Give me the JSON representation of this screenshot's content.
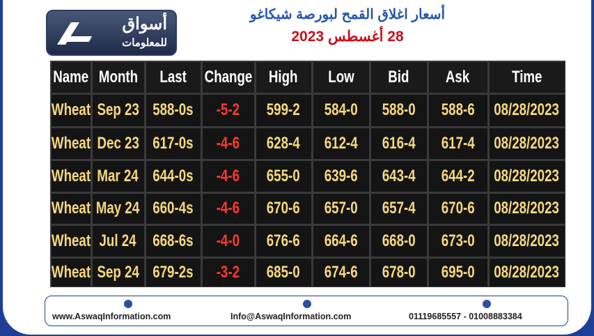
{
  "header": {
    "logo_name": "أسواق",
    "logo_sub": "للمعلومات",
    "title": "أسعار اغلاق القمح لبورصة شيكاغو",
    "date": "28 أغسطس 2023"
  },
  "table": {
    "columns": [
      "Name",
      "Month",
      "Last",
      "Change",
      "High",
      "Low",
      "Bid",
      "Ask",
      "Time"
    ],
    "rows": [
      [
        "Wheat",
        "Sep 23",
        "588-0s",
        "-5-2",
        "599-2",
        "584-0",
        "588-0",
        "588-6",
        "08/28/2023"
      ],
      [
        "Wheat",
        "Dec 23",
        "617-0s",
        "-4-6",
        "628-4",
        "612-4",
        "616-4",
        "617-4",
        "08/28/2023"
      ],
      [
        "Wheat",
        "Mar 24",
        "644-0s",
        "-4-6",
        "655-0",
        "639-6",
        "643-4",
        "644-2",
        "08/28/2023"
      ],
      [
        "Wheat",
        "May 24",
        "660-4s",
        "-4-6",
        "670-6",
        "657-0",
        "657-4",
        "670-6",
        "08/28/2023"
      ],
      [
        "Wheat",
        "Jul 24",
        "668-6s",
        "-4-0",
        "676-6",
        "664-6",
        "668-0",
        "673-0",
        "08/28/2023"
      ],
      [
        "Wheat",
        "Sep 24",
        "679-2s",
        "-3-2",
        "685-0",
        "674-6",
        "678-0",
        "695-0",
        "08/28/2023"
      ]
    ]
  },
  "footer": {
    "website": "www.AswaqInformation.com",
    "email": "Info@AswaqInformation.com",
    "phone": "01119685557 - 01008883384"
  }
}
